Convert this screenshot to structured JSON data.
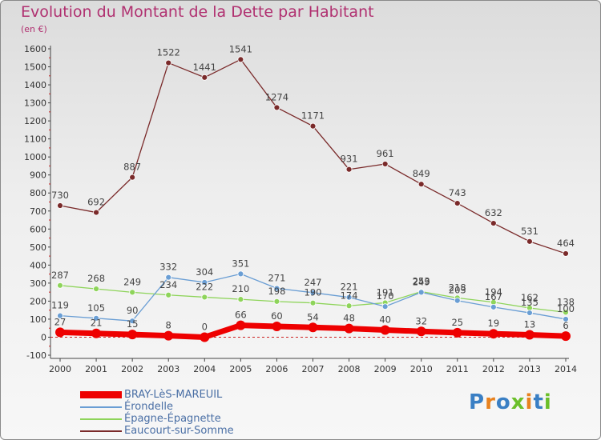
{
  "header": {
    "title": "Evolution du Montant de la Dette par Habitant",
    "subtitle": "(en €)"
  },
  "logo": {
    "text": "Proxiti"
  },
  "chart_data": {
    "type": "line",
    "title": "Evolution du Montant de la Dette par Habitant",
    "subtitle": "(en €)",
    "xlabel": "",
    "ylabel": "",
    "categories": [
      "2000",
      "2001",
      "2002",
      "2003",
      "2004",
      "2005",
      "2006",
      "2007",
      "2008",
      "2009",
      "2010",
      "2011",
      "2012",
      "2013",
      "2014"
    ],
    "ylim": [
      -100,
      1600
    ],
    "yticks": [
      -100,
      0,
      100,
      200,
      300,
      400,
      500,
      600,
      700,
      800,
      900,
      1000,
      1100,
      1200,
      1300,
      1400,
      1500,
      1600
    ],
    "grid": false,
    "legend_position": "bottom-left",
    "series": [
      {
        "name": "BRAY-LèS-MAREUIL",
        "color": "#ee0000",
        "width": "thick",
        "values": [
          27,
          21,
          15,
          8,
          0,
          66,
          60,
          54,
          48,
          40,
          32,
          25,
          19,
          13,
          6
        ],
        "labels": [
          "27",
          "21",
          "15",
          "8",
          "0",
          "66",
          "60",
          "54",
          "48",
          "40",
          "32",
          "25",
          "19",
          "13",
          "6"
        ]
      },
      {
        "name": "Érondelle",
        "color": "#6a9ed4",
        "values": [
          119,
          105,
          90,
          332,
          304,
          351,
          271,
          247,
          221,
          170,
          249,
          203,
          167,
          135,
          100
        ],
        "labels": [
          "119",
          "105",
          "90",
          "332",
          "304",
          "351",
          "271",
          "247",
          "221",
          "170",
          "249",
          "203",
          "167",
          "135",
          "100"
        ]
      },
      {
        "name": "Épagne-Épagnette",
        "color": "#8ed45a",
        "values": [
          287,
          268,
          249,
          234,
          222,
          210,
          198,
          190,
          174,
          191,
          253,
          218,
          194,
          162,
          138
        ],
        "labels": [
          "287",
          "268",
          "249",
          "234",
          "222",
          "210",
          "198",
          "190",
          "174",
          "191",
          "253",
          "218",
          "194",
          "162",
          "138"
        ]
      },
      {
        "name": "Eaucourt-sur-Somme",
        "color": "#7a2a2a",
        "values": [
          730,
          692,
          887,
          1522,
          1441,
          1541,
          1274,
          1171,
          931,
          961,
          849,
          743,
          632,
          531,
          464
        ],
        "labels": [
          "730",
          "692",
          "887",
          "1522",
          "1441",
          "1541",
          "1274",
          "1171",
          "931",
          "961",
          "849",
          "743",
          "632",
          "531",
          "464"
        ]
      }
    ]
  }
}
